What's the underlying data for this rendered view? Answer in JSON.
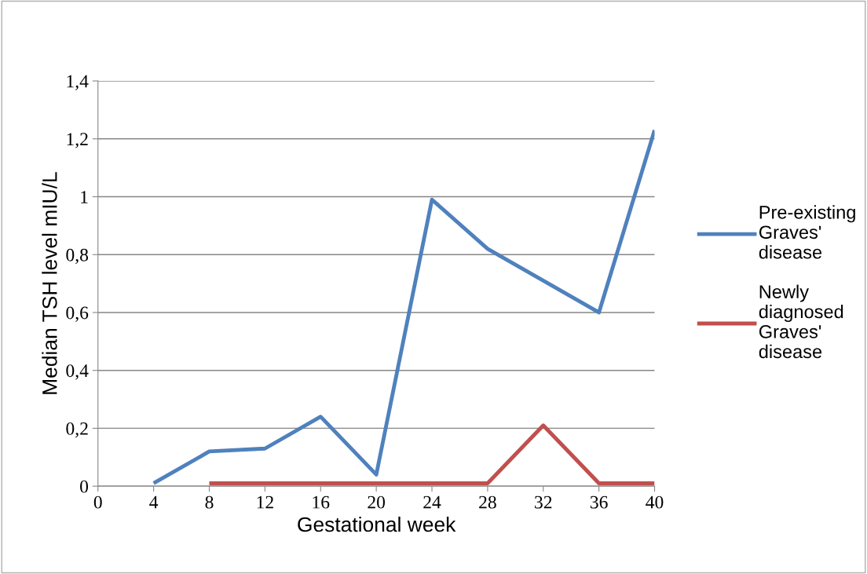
{
  "chart_data": {
    "type": "line",
    "xlabel": "Gestational week",
    "ylabel": "Median TSH level mIU/L",
    "xlim": [
      0,
      40
    ],
    "xticks": [
      0,
      4,
      8,
      12,
      16,
      20,
      24,
      28,
      32,
      36,
      40
    ],
    "ylim": [
      0,
      1.4
    ],
    "yticks": [
      {
        "value": 0,
        "label": "0"
      },
      {
        "value": 0.2,
        "label": "0,2"
      },
      {
        "value": 0.4,
        "label": "0,4"
      },
      {
        "value": 0.6,
        "label": "0,6"
      },
      {
        "value": 0.8,
        "label": "0,8"
      },
      {
        "value": 1,
        "label": "1"
      },
      {
        "value": 1.2,
        "label": "1,2"
      },
      {
        "value": 1.4,
        "label": "1,4"
      }
    ],
    "grid": "y",
    "legend": "right",
    "marker": "none",
    "line_style": "solid",
    "series": [
      {
        "name": "Pre-existing Graves' disease",
        "color": "#4f81bd",
        "x": [
          4,
          8,
          12,
          16,
          20,
          24,
          28,
          32,
          36,
          40
        ],
        "values": [
          0.01,
          0.12,
          0.13,
          0.24,
          0.04,
          0.99,
          0.82,
          0.71,
          0.6,
          1.23
        ]
      },
      {
        "name": "Newly diagnosed Graves' disease",
        "color": "#c0504d",
        "x": [
          8,
          12,
          16,
          20,
          24,
          28,
          32,
          36,
          40
        ],
        "values": [
          0.01,
          0.01,
          0.01,
          0.01,
          0.01,
          0.01,
          0.21,
          0.01,
          0.01
        ]
      }
    ]
  }
}
